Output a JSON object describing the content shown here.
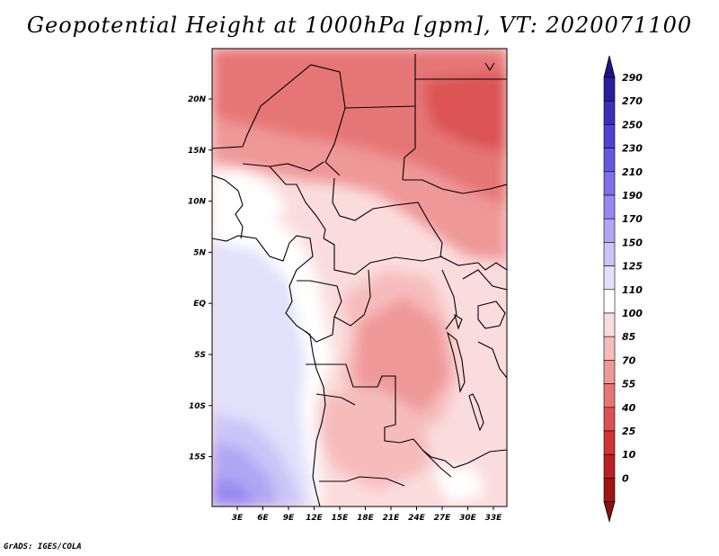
{
  "title": "Geopotential Height at 1000hPa [gpm], VT: 2020071100",
  "credit": "GrADS: IGES/COLA",
  "map": {
    "lat_labels": [
      "20N",
      "15N",
      "10N",
      "5N",
      "EQ",
      "5S",
      "10S",
      "15S"
    ],
    "lon_labels": [
      "3E",
      "6E",
      "9E",
      "12E",
      "15E",
      "18E",
      "21E",
      "24E",
      "27E",
      "30E",
      "33E"
    ]
  },
  "colorbar": {
    "levels": [
      "290",
      "270",
      "250",
      "230",
      "210",
      "190",
      "170",
      "150",
      "125",
      "110",
      "100",
      "85",
      "70",
      "55",
      "40",
      "25",
      "10",
      "0"
    ],
    "colors": [
      "#2a1e9a",
      "#3a2ebc",
      "#4e42d2",
      "#6558e0",
      "#7d70ea",
      "#9688f0",
      "#b0a6f4",
      "#cac4f8",
      "#e2e0fb",
      "#ffffff",
      "#fbdcdc",
      "#f6bcbc",
      "#ef9898",
      "#e67676",
      "#dc5252",
      "#d03434",
      "#bc2020",
      "#a01414"
    ],
    "top_color": "#1e1488",
    "bottom_color": "#8a1010"
  }
}
